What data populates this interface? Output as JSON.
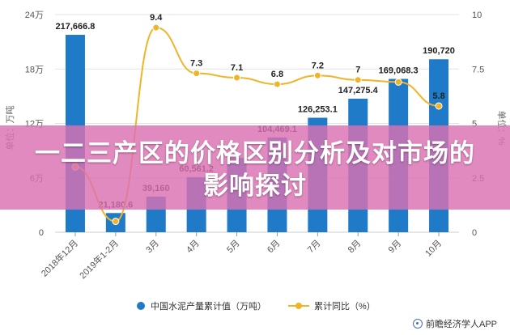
{
  "chart_data": {
    "type": "bar+line",
    "categories": [
      "2018年12月",
      "2019年1-2月",
      "3月",
      "4月",
      "5月",
      "6月",
      "7月",
      "8月",
      "9月",
      "10月"
    ],
    "series": [
      {
        "name": "中国水泥产量累计值（万吨）",
        "type": "bar",
        "axis": "left",
        "values": [
          217666.8,
          21180.6,
          39160,
          60561.2,
          82000,
          104469.1,
          126253.1,
          147275.4,
          169068.3,
          190720
        ],
        "labels": [
          "217,666.8",
          "21,180.6",
          "39,160",
          "60,561.2",
          "",
          "104,469.1",
          "126,253.1",
          "147,275.4",
          "169,068.3",
          "190,720"
        ],
        "color": "#1f7bc8"
      },
      {
        "name": "累计同比（%）",
        "type": "line",
        "axis": "right",
        "values": [
          3,
          0.5,
          9.4,
          7.3,
          7.1,
          6.8,
          7.2,
          7,
          6.9,
          5.8
        ],
        "labels": [
          "",
          "",
          "9.4",
          "7.3",
          "7.1",
          "6.8",
          "7.2",
          "7",
          "",
          "5.8"
        ],
        "color": "#f0b429"
      }
    ],
    "y_left": {
      "label": "单位：万吨",
      "ticks": [
        "0",
        "6万",
        "12万",
        "18万",
        "24万"
      ],
      "ylim": [
        0,
        240000
      ]
    },
    "y_right": {
      "label": "单位：%",
      "ticks": [
        "0",
        "2.5",
        "5",
        "7.5",
        "10"
      ],
      "ylim": [
        0,
        10
      ]
    },
    "legend_position": "bottom"
  },
  "banner": {
    "title": "一二三产区的价格区别分析及对市场的影响探讨"
  },
  "credit": {
    "text": "前瞻经济学人APP"
  }
}
